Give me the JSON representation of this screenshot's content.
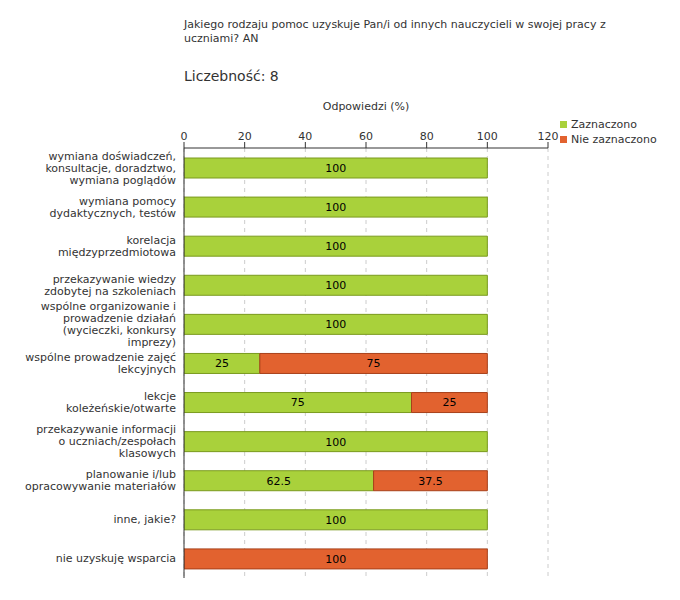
{
  "chart_data": {
    "type": "bar",
    "title": "Jakiego rodzaju pomoc uzyskuje Pan/i od innych nauczycieli w swojej pracy z uczniami? AN",
    "subtitle": "Liczebność: 8",
    "x_label": "Odpowiedzi (%)",
    "orientation": "horizontal",
    "stacked": true,
    "data_labels": true,
    "grid": true,
    "legend": "upper right",
    "categories": [
      "wymiana doświadczeń, konsultacje, doradztwo, wymiana poglądów",
      "wymiana pomocy dydaktycznych, testów",
      "korelacja międzyprzedmiotowa",
      "przekazywanie wiedzy zdobytej na szkoleniach",
      "wspólne organizowanie i prowadzenie działań (wycieczki, konkursy imprezy)",
      "wspólne prowadzenie zajęć lekcyjnych",
      "lekcje koleżeńskie/otwarte",
      "przekazywanie informacji o uczniach/zespołach klasowych",
      "planowanie i/lub opracowywanie materiałów",
      "inne, jakie?",
      "nie uzyskuję wsparcia"
    ],
    "series": [
      {
        "name": "Zaznaczono",
        "color": "#a9d13b",
        "values": [
          100,
          100,
          100,
          100,
          100,
          25,
          75,
          100,
          62.5,
          100,
          0
        ]
      },
      {
        "name": "Nie zaznaczono",
        "color": "#e2622f",
        "values": [
          0,
          0,
          0,
          0,
          0,
          75,
          25,
          0,
          37.5,
          0,
          100
        ]
      }
    ],
    "xlim": [
      0,
      120
    ],
    "xticks": [
      0,
      20,
      40,
      60,
      80,
      100,
      120
    ]
  }
}
